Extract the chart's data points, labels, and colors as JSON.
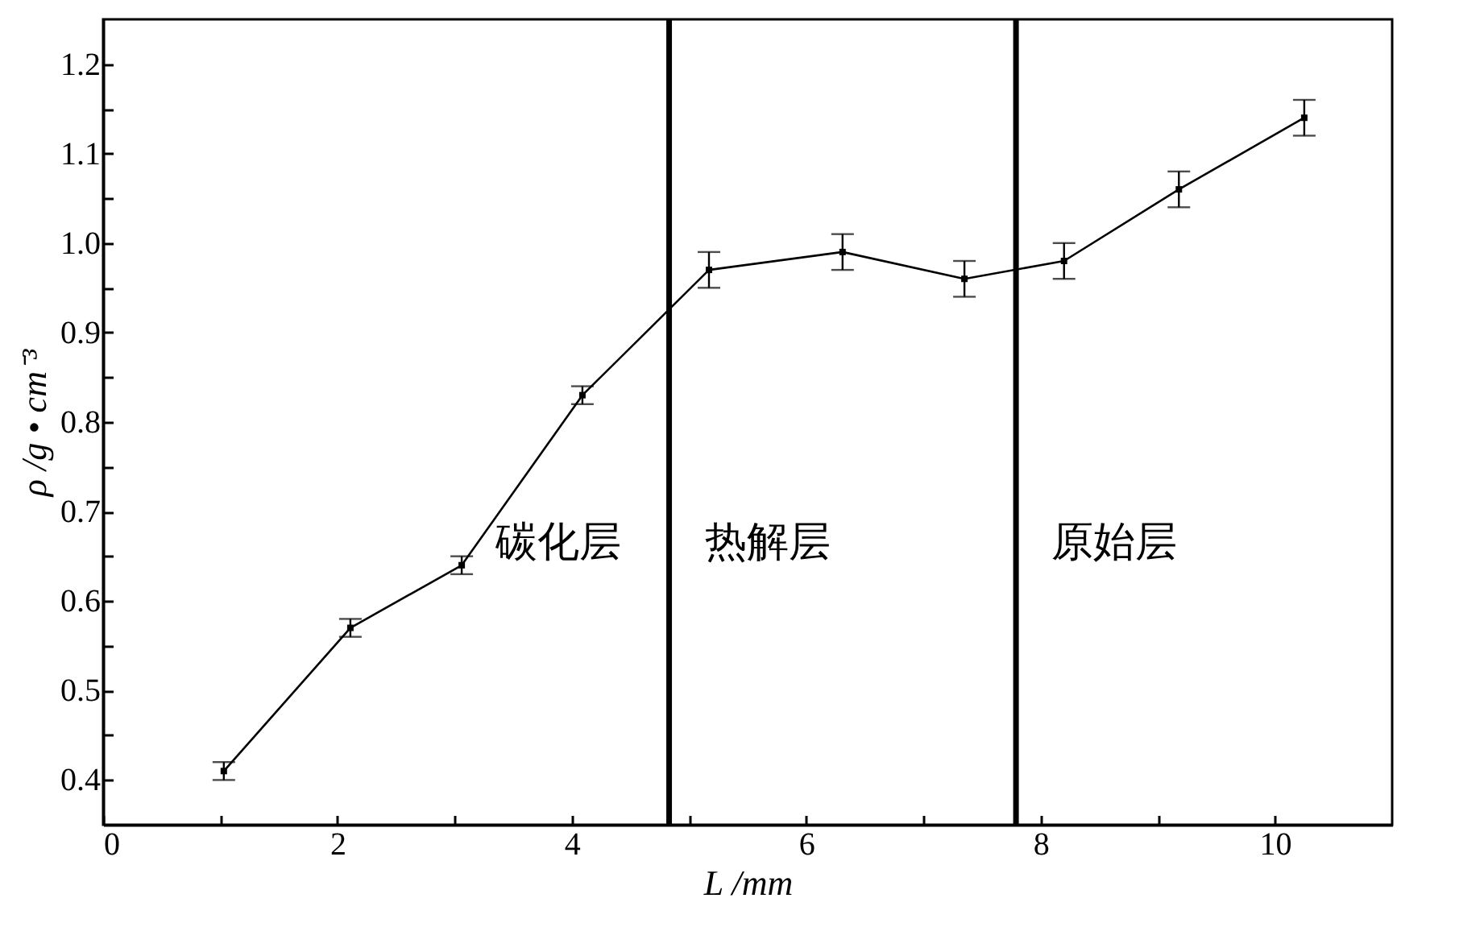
{
  "chart_data": {
    "type": "line",
    "xlabel": "L /mm",
    "ylabel": "ρ /g • cm⁻³",
    "x": [
      1.03,
      2.11,
      3.06,
      4.09,
      5.17,
      6.31,
      7.35,
      8.2,
      9.18,
      10.25
    ],
    "series": [
      {
        "color": "#000000",
        "values": [
          0.41,
          0.57,
          0.64,
          0.83,
          0.97,
          0.99,
          0.96,
          0.98,
          1.06,
          1.14
        ],
        "errors": [
          0.01,
          0.01,
          0.01,
          0.01,
          0.02,
          0.02,
          0.02,
          0.02,
          0.02,
          0.02
        ]
      }
    ],
    "xlim": [
      0,
      11
    ],
    "xticks": [
      0,
      {
        "value": 1,
        "label": null
      },
      2,
      {
        "value": 3,
        "label": null
      },
      4,
      {
        "value": 5,
        "label": null
      },
      6,
      {
        "value": 7,
        "label": null
      },
      8,
      {
        "value": 9,
        "label": null
      },
      10
    ],
    "ylim": [
      0.35,
      1.25
    ],
    "yticks": [
      0.4,
      {
        "value": 0.45,
        "label": null
      },
      0.5,
      {
        "value": 0.55,
        "label": null
      },
      0.6,
      {
        "value": 0.65,
        "label": null
      },
      0.7,
      {
        "value": 0.75,
        "label": null
      },
      0.8,
      {
        "value": 0.85,
        "label": null
      },
      0.9,
      {
        "value": 0.95,
        "label": null
      },
      {
        "value": 1.0,
        "label": "1.0"
      },
      {
        "value": 1.05,
        "label": null
      },
      1.1,
      {
        "value": 1.15,
        "label": null
      },
      1.2
    ],
    "ref_lines": [
      {
        "axis": "x",
        "value": 4.83,
        "color": "#000000"
      },
      {
        "axis": "x",
        "value": 7.79,
        "color": "#000000"
      }
    ],
    "annotations": [
      "碳化层",
      "热解层",
      "原始层"
    ],
    "marker": "square",
    "line_style": "solid",
    "grid": false
  }
}
